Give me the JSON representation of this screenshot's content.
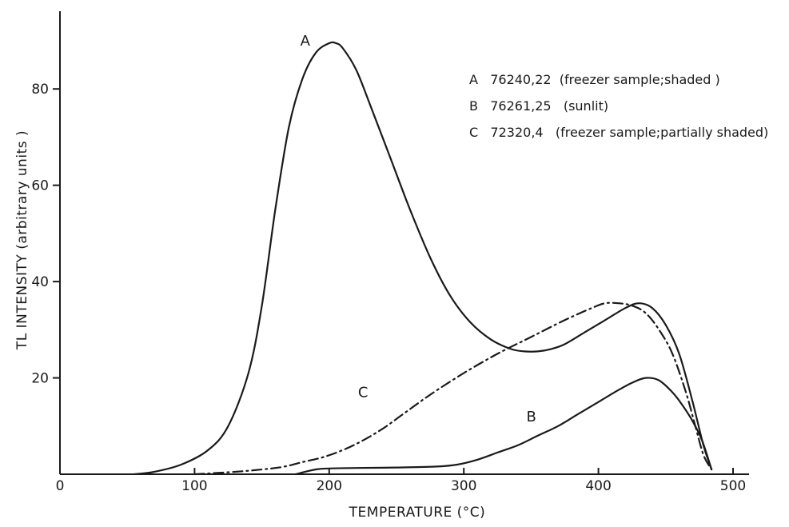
{
  "chart_data": {
    "type": "line",
    "title": "",
    "xlabel": "TEMPERATURE (°C)",
    "ylabel": "TL  INTENSITY  (arbitrary  units )",
    "xlim": [
      0,
      500
    ],
    "ylim": [
      0,
      90
    ],
    "xticks": [
      0,
      100,
      200,
      300,
      400,
      500
    ],
    "yticks": [
      20,
      40,
      60,
      80
    ],
    "grid": false,
    "legend_position": "top-right",
    "series": [
      {
        "name": "A",
        "legend": "A   76240,22  (freezer sample;shaded )",
        "style": "solid",
        "color": "#1a1a1a",
        "x": [
          55,
          70,
          90,
          110,
          125,
          140,
          150,
          160,
          170,
          180,
          190,
          200,
          205,
          210,
          220,
          230,
          245,
          260,
          275,
          290,
          305,
          320,
          335,
          345,
          355,
          365,
          375,
          390,
          405,
          420,
          430,
          440,
          450,
          460,
          470,
          478,
          484
        ],
        "y": [
          0,
          0.5,
          2,
          5,
          10,
          21,
          35,
          55,
          72,
          82,
          87.5,
          89.5,
          89.5,
          88.5,
          84,
          77,
          66,
          55,
          45,
          37,
          31.5,
          28,
          26,
          25.5,
          25.5,
          26,
          27,
          29.5,
          32,
          34.5,
          35.5,
          34.5,
          31,
          25,
          15,
          6,
          1
        ]
      },
      {
        "name": "B",
        "legend": "B   76261,25   (sunlit)",
        "style": "solid",
        "color": "#1a1a1a",
        "x": [
          175,
          190,
          200,
          220,
          250,
          280,
          295,
          310,
          325,
          340,
          355,
          370,
          385,
          400,
          415,
          425,
          435,
          445,
          455,
          462,
          470,
          477,
          484
        ],
        "y": [
          0,
          1,
          1.2,
          1.3,
          1.4,
          1.6,
          2,
          3,
          4.5,
          6,
          8,
          10,
          12.5,
          15,
          17.5,
          19,
          20,
          19.5,
          17,
          14.5,
          11,
          7,
          1
        ]
      },
      {
        "name": "C",
        "legend": "C   72320,4   (freezer sample;partially shaded)",
        "style": "dash-dot",
        "color": "#1a1a1a",
        "x": [
          100,
          130,
          150,
          165,
          180,
          195,
          210,
          225,
          240,
          255,
          275,
          300,
          325,
          350,
          375,
          395,
          405,
          415,
          425,
          435,
          445,
          455,
          465,
          472,
          478,
          484
        ],
        "y": [
          0,
          0.5,
          1,
          1.5,
          2.5,
          3.5,
          5,
          7,
          9.5,
          12.5,
          16.5,
          21,
          25,
          28.5,
          32,
          34.5,
          35.5,
          35.5,
          35,
          33.5,
          30,
          25,
          17,
          10,
          4,
          1
        ]
      }
    ],
    "curve_labels": [
      {
        "text": "A",
        "x": 200,
        "y": 88
      },
      {
        "text": "B",
        "x": 368,
        "y": 10
      },
      {
        "text": "C",
        "x": 243,
        "y": 15
      }
    ]
  }
}
